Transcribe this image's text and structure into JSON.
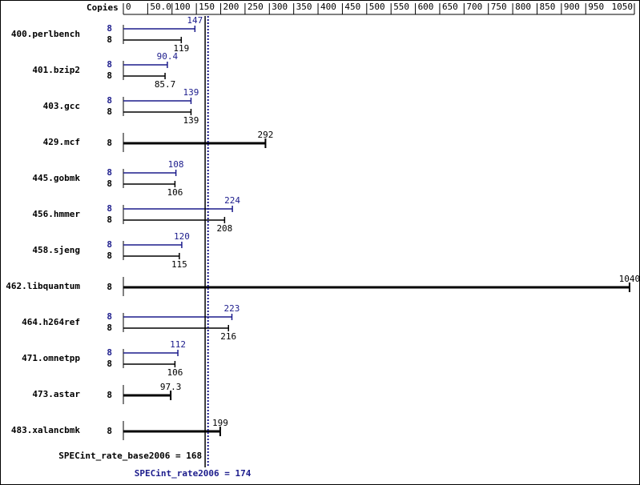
{
  "chart_data": {
    "type": "bar",
    "orientation": "horizontal",
    "copies_label": "Copies",
    "categories": [
      "400.perlbench",
      "401.bzip2",
      "403.gcc",
      "429.mcf",
      "445.gobmk",
      "456.hmmer",
      "458.sjeng",
      "462.libquantum",
      "464.h264ref",
      "471.omnetpp",
      "473.astar",
      "483.xalancbmk"
    ],
    "series": [
      {
        "color": "#1c1c8c",
        "values": [
          147,
          90.4,
          139,
          null,
          108,
          224,
          120,
          null,
          223,
          112,
          null,
          null
        ],
        "copies": [
          8,
          8,
          8,
          null,
          8,
          8,
          8,
          null,
          8,
          8,
          null,
          null
        ]
      },
      {
        "color": "#000000",
        "values": [
          119,
          85.7,
          139,
          292,
          106,
          208,
          115,
          1040,
          216,
          106,
          97.3,
          199
        ],
        "copies": [
          8,
          8,
          8,
          8,
          8,
          8,
          8,
          8,
          8,
          8,
          8,
          8
        ]
      }
    ],
    "xlim": [
      0,
      1050
    ],
    "xticks": [
      0,
      {
        "value": 50,
        "label": "50.0"
      },
      100,
      150,
      200,
      250,
      300,
      350,
      400,
      450,
      500,
      550,
      600,
      650,
      700,
      750,
      800,
      850,
      900,
      950,
      1050
    ],
    "reference_lines": [
      {
        "label": "SPECint_rate_base2006 = 168",
        "value": 168,
        "color": "#000000",
        "style": "solid"
      },
      {
        "label": "SPECint_rate2006 = 174",
        "value": 174,
        "color": "#1c1c8c",
        "style": "dotted"
      }
    ]
  }
}
